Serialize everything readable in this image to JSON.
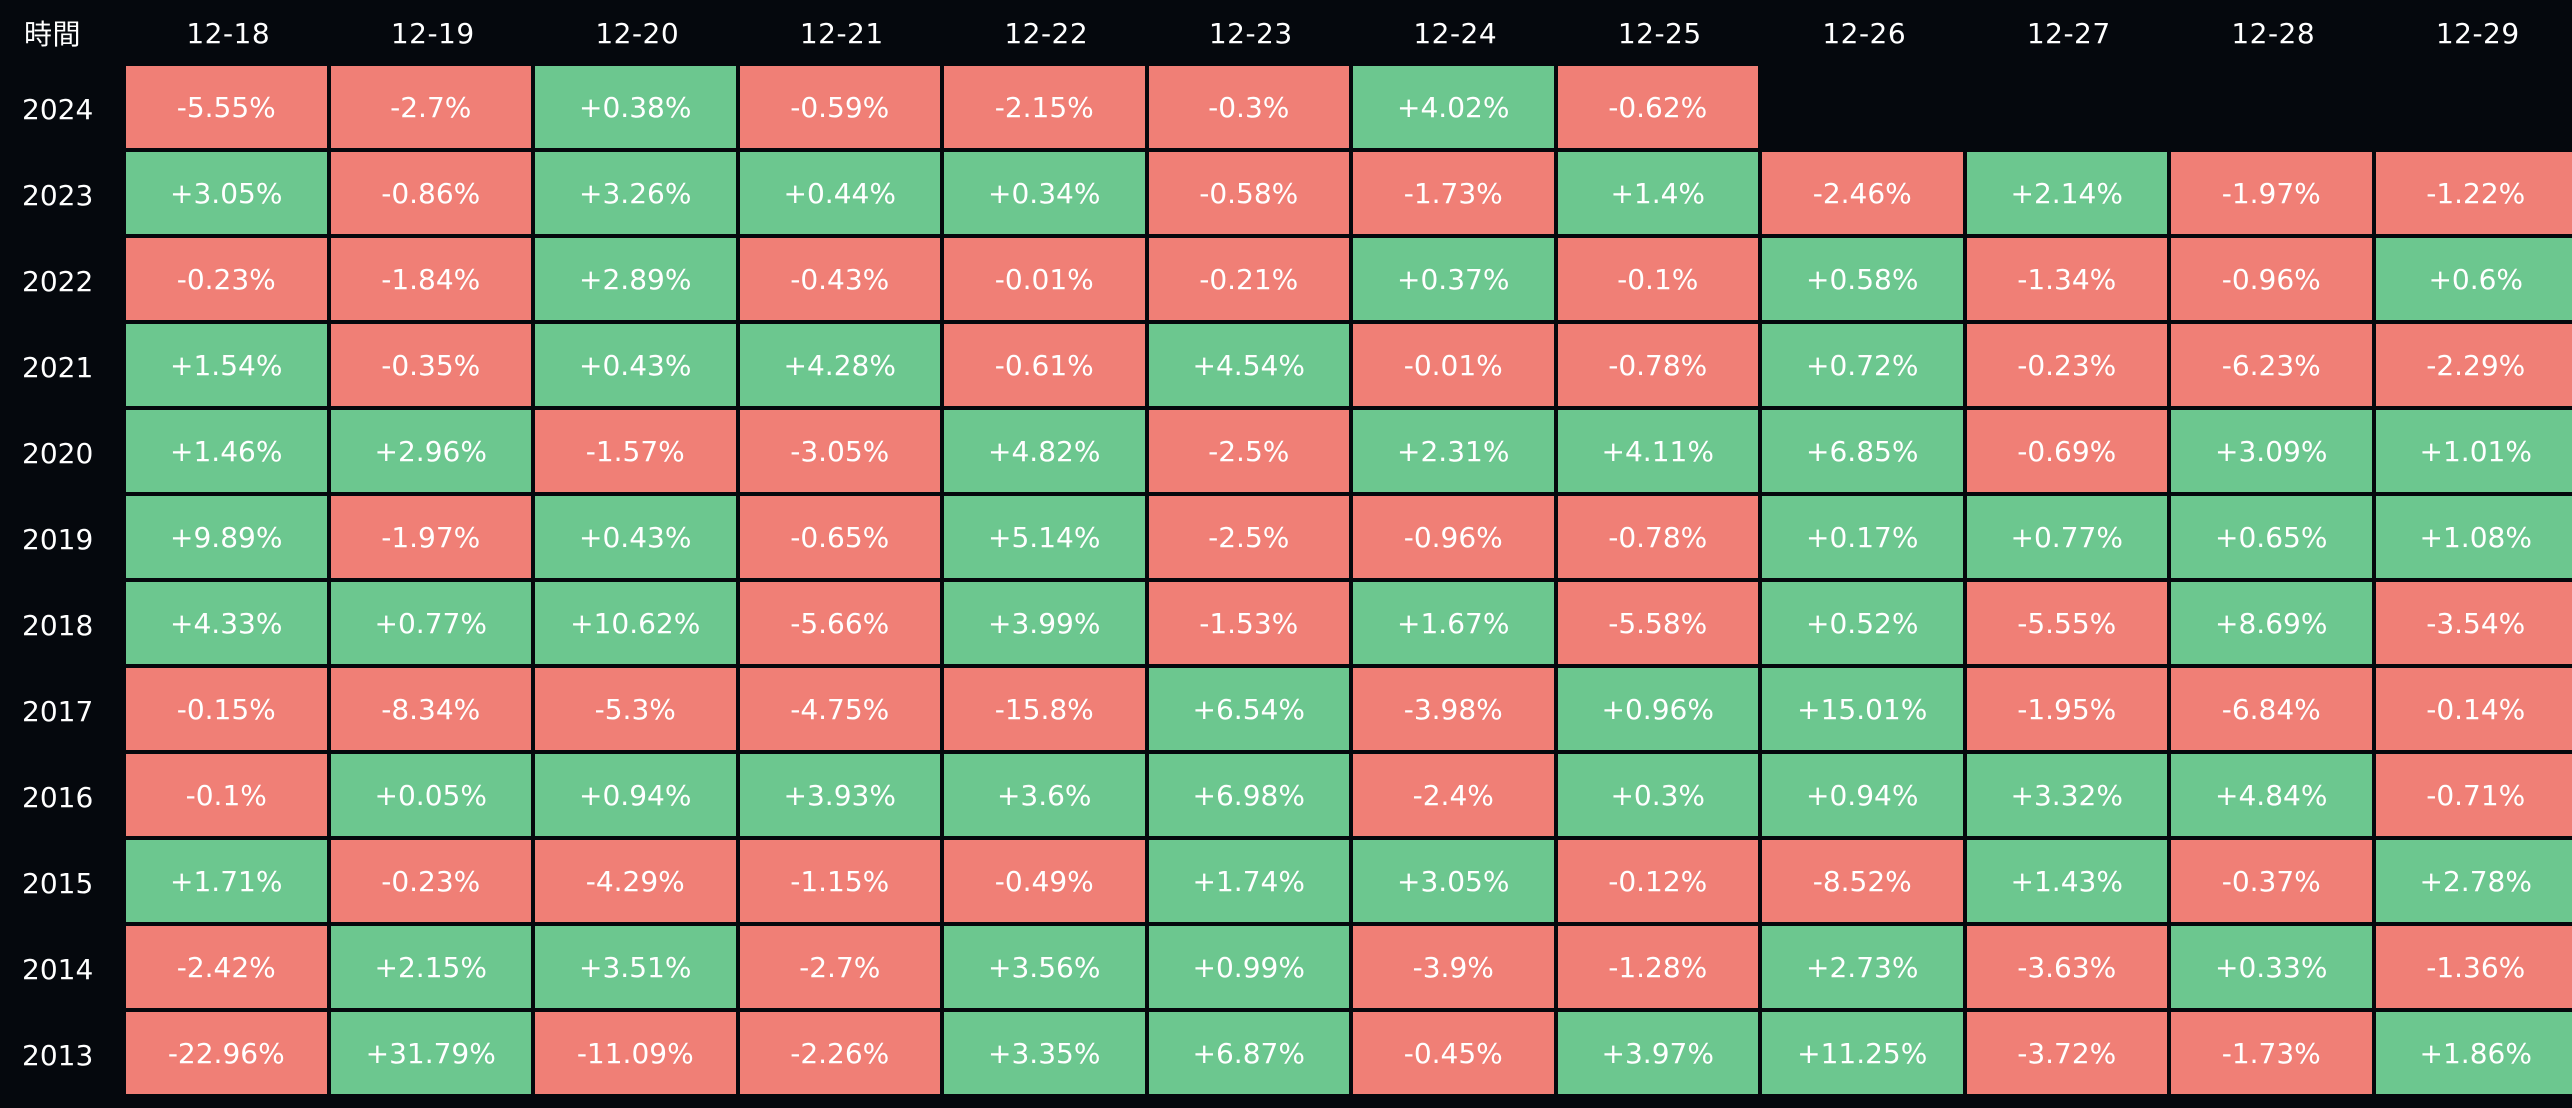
{
  "chart_data": {
    "type": "heatmap",
    "corner_label": "時間",
    "columns": [
      "12-18",
      "12-19",
      "12-20",
      "12-21",
      "12-22",
      "12-23",
      "12-24",
      "12-25",
      "12-26",
      "12-27",
      "12-28",
      "12-29"
    ],
    "rows": [
      {
        "label": "2024",
        "values": [
          "-5.55%",
          "-2.7%",
          "+0.38%",
          "-0.59%",
          "-2.15%",
          "-0.3%",
          "+4.02%",
          "-0.62%",
          null,
          null,
          null,
          null
        ]
      },
      {
        "label": "2023",
        "values": [
          "+3.05%",
          "-0.86%",
          "+3.26%",
          "+0.44%",
          "+0.34%",
          "-0.58%",
          "-1.73%",
          "+1.4%",
          "-2.46%",
          "+2.14%",
          "-1.97%",
          "-1.22%"
        ]
      },
      {
        "label": "2022",
        "values": [
          "-0.23%",
          "-1.84%",
          "+2.89%",
          "-0.43%",
          "-0.01%",
          "-0.21%",
          "+0.37%",
          "-0.1%",
          "+0.58%",
          "-1.34%",
          "-0.96%",
          "+0.6%"
        ]
      },
      {
        "label": "2021",
        "values": [
          "+1.54%",
          "-0.35%",
          "+0.43%",
          "+4.28%",
          "-0.61%",
          "+4.54%",
          "-0.01%",
          "-0.78%",
          "+0.72%",
          "-0.23%",
          "-6.23%",
          "-2.29%"
        ]
      },
      {
        "label": "2020",
        "values": [
          "+1.46%",
          "+2.96%",
          "-1.57%",
          "-3.05%",
          "+4.82%",
          "-2.5%",
          "+2.31%",
          "+4.11%",
          "+6.85%",
          "-0.69%",
          "+3.09%",
          "+1.01%"
        ]
      },
      {
        "label": "2019",
        "values": [
          "+9.89%",
          "-1.97%",
          "+0.43%",
          "-0.65%",
          "+5.14%",
          "-2.5%",
          "-0.96%",
          "-0.78%",
          "+0.17%",
          "+0.77%",
          "+0.65%",
          "+1.08%"
        ]
      },
      {
        "label": "2018",
        "values": [
          "+4.33%",
          "+0.77%",
          "+10.62%",
          "-5.66%",
          "+3.99%",
          "-1.53%",
          "+1.67%",
          "-5.58%",
          "+0.52%",
          "-5.55%",
          "+8.69%",
          "-3.54%"
        ]
      },
      {
        "label": "2017",
        "values": [
          "-0.15%",
          "-8.34%",
          "-5.3%",
          "-4.75%",
          "-15.8%",
          "+6.54%",
          "-3.98%",
          "+0.96%",
          "+15.01%",
          "-1.95%",
          "-6.84%",
          "-0.14%"
        ]
      },
      {
        "label": "2016",
        "values": [
          "-0.1%",
          "+0.05%",
          "+0.94%",
          "+3.93%",
          "+3.6%",
          "+6.98%",
          "-2.4%",
          "+0.3%",
          "+0.94%",
          "+3.32%",
          "+4.84%",
          "-0.71%"
        ]
      },
      {
        "label": "2015",
        "values": [
          "+1.71%",
          "-0.23%",
          "-4.29%",
          "-1.15%",
          "-0.49%",
          "+1.74%",
          "+3.05%",
          "-0.12%",
          "-8.52%",
          "+1.43%",
          "-0.37%",
          "+2.78%"
        ]
      },
      {
        "label": "2014",
        "values": [
          "-2.42%",
          "+2.15%",
          "+3.51%",
          "-2.7%",
          "+3.56%",
          "+0.99%",
          "-3.9%",
          "-1.28%",
          "+2.73%",
          "-3.63%",
          "+0.33%",
          "-1.36%"
        ]
      },
      {
        "label": "2013",
        "values": [
          "-22.96%",
          "+31.79%",
          "-11.09%",
          "-2.26%",
          "+3.35%",
          "+6.87%",
          "-0.45%",
          "+3.97%",
          "+11.25%",
          "-3.72%",
          "-1.73%",
          "+1.86%"
        ]
      }
    ],
    "colors": {
      "background": "#05080d",
      "positive": "#6cc78f",
      "negative": "#f07f76",
      "text": "#ffffff"
    }
  }
}
